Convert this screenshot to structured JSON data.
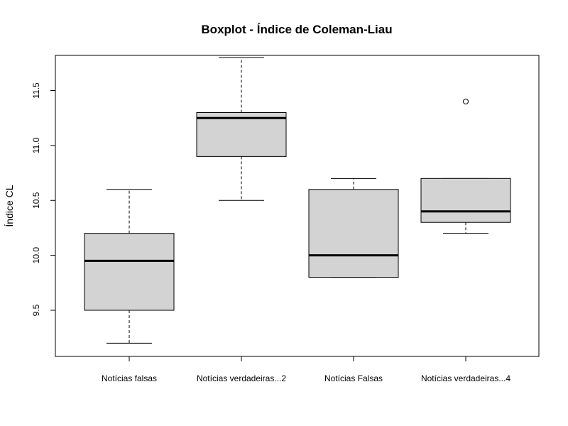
{
  "chart_data": {
    "type": "box",
    "title": "Boxplot - Índice de Coleman-Liau",
    "xlabel": "",
    "ylabel": "Índice CL",
    "ylim": [
      9.08,
      11.82
    ],
    "yticks": [
      9.5,
      10.0,
      10.5,
      11.0,
      11.5
    ],
    "ytick_labels": [
      "9.5",
      "10.0",
      "10.5",
      "11.0",
      "11.5"
    ],
    "grid": false,
    "box_color": "#d3d3d3",
    "categories": [
      "Notícias falsas",
      "Notícias verdadeiras...2",
      "Notícias Falsas",
      "Notícias verdadeiras...4"
    ],
    "boxes": [
      {
        "whisker_low": 9.2,
        "q1": 9.5,
        "median": 9.95,
        "q3": 10.2,
        "whisker_high": 10.6,
        "outliers": []
      },
      {
        "whisker_low": 10.5,
        "q1": 10.9,
        "median": 11.25,
        "q3": 11.3,
        "whisker_high": 11.8,
        "outliers": []
      },
      {
        "whisker_low": 9.8,
        "q1": 9.8,
        "median": 10.0,
        "q3": 10.6,
        "whisker_high": 10.7,
        "outliers": []
      },
      {
        "whisker_low": 10.2,
        "q1": 10.3,
        "median": 10.4,
        "q3": 10.7,
        "whisker_high": 10.7,
        "outliers": [
          11.4
        ]
      }
    ]
  }
}
